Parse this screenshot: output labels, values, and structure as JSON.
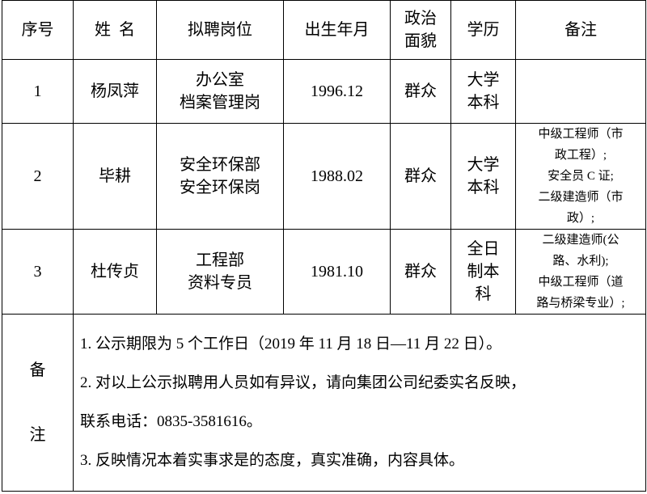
{
  "headers": [
    "序号",
    "姓  名",
    "拟聘岗位",
    "出生年月",
    "政治\n面貌",
    "学历",
    "备注"
  ],
  "rows": [
    {
      "no": "1",
      "name": "杨凤萍",
      "position": [
        "办公室",
        "档案管理岗"
      ],
      "birth": "1996.12",
      "political": "群众",
      "education": [
        "大学",
        "本科"
      ],
      "remark": []
    },
    {
      "no": "2",
      "name": "毕耕",
      "position": [
        "安全环保部",
        "安全环保岗"
      ],
      "birth": "1988.02",
      "political": "群众",
      "education": [
        "大学",
        "本科"
      ],
      "remark": [
        "中级工程师（市",
        "政工程）;",
        "安全员 C 证;",
        "二级建造师（市",
        "政）;"
      ]
    },
    {
      "no": "3",
      "name": "杜传贞",
      "position": [
        "工程部",
        "资料专员"
      ],
      "birth": "1981.10",
      "political": "群众",
      "education": [
        "全日",
        "制本",
        "科"
      ],
      "remark": [
        "二级建造师(公",
        "路、水利);",
        "中级工程师（道",
        "路与桥梁专业）;"
      ]
    }
  ],
  "notes": {
    "label": [
      "备",
      "注"
    ],
    "lines": [
      "1. 公示期限为 5 个工作日（2019 年 11 月 18 日—11 月 22 日）。",
      "2. 对以上公示拟聘用人员如有异议，请向集团公司纪委实名反映，",
      "联系电话：0835-3581616。",
      "3. 反映情况本着实事求是的态度，真实准确，内容具体。"
    ]
  }
}
